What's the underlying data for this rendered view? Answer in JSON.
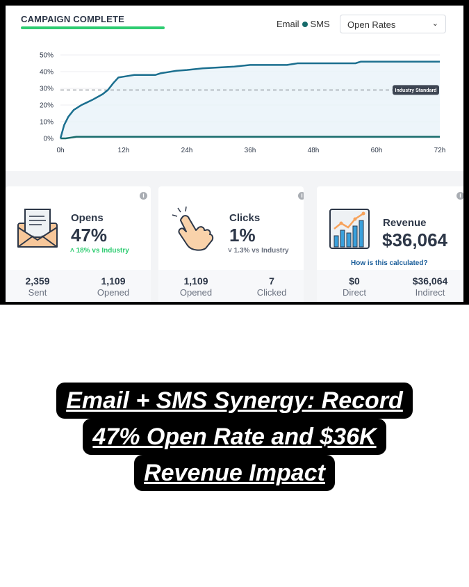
{
  "header": {
    "title": "CAMPAIGN COMPLETE",
    "legend_email": "Email",
    "legend_sms": "SMS",
    "dropdown_value": "Open Rates"
  },
  "chart_data": {
    "type": "line",
    "x_ticks": [
      "0h",
      "12h",
      "24h",
      "36h",
      "48h",
      "60h",
      "72h"
    ],
    "y_ticks": [
      "0%",
      "10%",
      "20%",
      "30%",
      "40%",
      "50%"
    ],
    "xlim": [
      0,
      72
    ],
    "ylim": [
      0,
      50
    ],
    "series": [
      {
        "name": "Email",
        "x": [
          0,
          0.7,
          1.5,
          2.5,
          4,
          6,
          8,
          9,
          10,
          11,
          12,
          14,
          16,
          18,
          19,
          20,
          22,
          24,
          27,
          30,
          33,
          36,
          40,
          43,
          45,
          48,
          52,
          56,
          57,
          60,
          64,
          68,
          72
        ],
        "y": [
          0,
          8,
          13,
          17,
          20,
          23,
          26.5,
          29,
          33,
          36.5,
          37,
          38,
          38,
          38,
          39,
          39.5,
          40.5,
          41,
          42,
          42.5,
          43,
          44,
          44,
          44,
          45,
          45,
          45,
          45,
          46,
          46,
          46,
          46,
          46
        ]
      },
      {
        "name": "SMS",
        "x": [
          0,
          1,
          2,
          3,
          72
        ],
        "y": [
          0,
          0,
          0.5,
          1,
          1
        ]
      }
    ],
    "reference_line": {
      "label": "Industry Standard",
      "y": 29
    }
  },
  "cards": {
    "opens": {
      "label": "Opens",
      "value": "47%",
      "delta": "18% vs Industry",
      "stat1_value": "2,359",
      "stat1_label": "Sent",
      "stat2_value": "1,109",
      "stat2_label": "Opened"
    },
    "clicks": {
      "label": "Clicks",
      "value": "1%",
      "delta": "1.3% vs Industry",
      "stat1_value": "1,109",
      "stat1_label": "Opened",
      "stat2_value": "7",
      "stat2_label": "Clicked"
    },
    "revenue": {
      "label": "Revenue",
      "value": "$36,064",
      "link": "How is this calculated?",
      "stat1_value": "$0",
      "stat1_label": "Direct",
      "stat2_value": "$36,064",
      "stat2_label": "Indirect"
    }
  },
  "caption": {
    "line1": "Email + SMS Synergy: Record",
    "line2": "47% Open Rate and $36K",
    "line3": "Revenue Impact"
  },
  "colors": {
    "email_line": "#1b6f8f",
    "sms_line": "#176b6b",
    "positive": "#2ecc71",
    "link": "#1b5e9a"
  }
}
